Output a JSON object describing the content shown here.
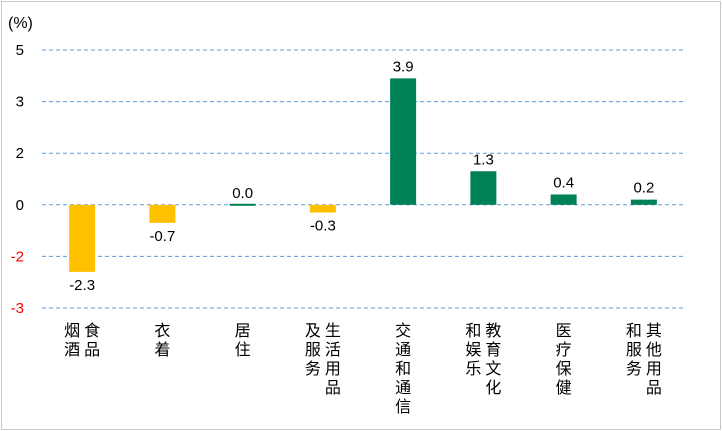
{
  "chart_data": {
    "type": "bar",
    "unit_label": "(%)",
    "title": "",
    "xlabel": "",
    "ylabel": "",
    "categories": [
      [
        "食品",
        "烟酒"
      ],
      [
        "衣着"
      ],
      [
        "居住"
      ],
      [
        "生活用品",
        "及服务"
      ],
      [
        "交通和通信"
      ],
      [
        "教育文化",
        "和娱乐"
      ],
      [
        "医疗保健"
      ],
      [
        "其他用品",
        "和服务"
      ]
    ],
    "values": [
      -2.3,
      -0.7,
      0.0,
      -0.3,
      3.9,
      1.3,
      0.4,
      0.2
    ],
    "value_labels": [
      "-2.3",
      "-0.7",
      "0.0",
      "-0.3",
      "3.9",
      "1.3",
      "0.4",
      "0.2"
    ],
    "yticks": [
      {
        "label": "5",
        "value": 5
      },
      {
        "label": "3",
        "value": 3
      },
      {
        "label": "2",
        "value": 2
      },
      {
        "label": "0",
        "value": 0
      },
      {
        "label": "-2",
        "value": -2
      },
      {
        "label": "-3",
        "value": -3
      }
    ],
    "colors": {
      "negative": "#FFC000",
      "positive": "#008055",
      "grid": "#5B9BD5",
      "tick_positive": "#000000",
      "tick_negative": "#FF0000"
    },
    "grid": true
  }
}
